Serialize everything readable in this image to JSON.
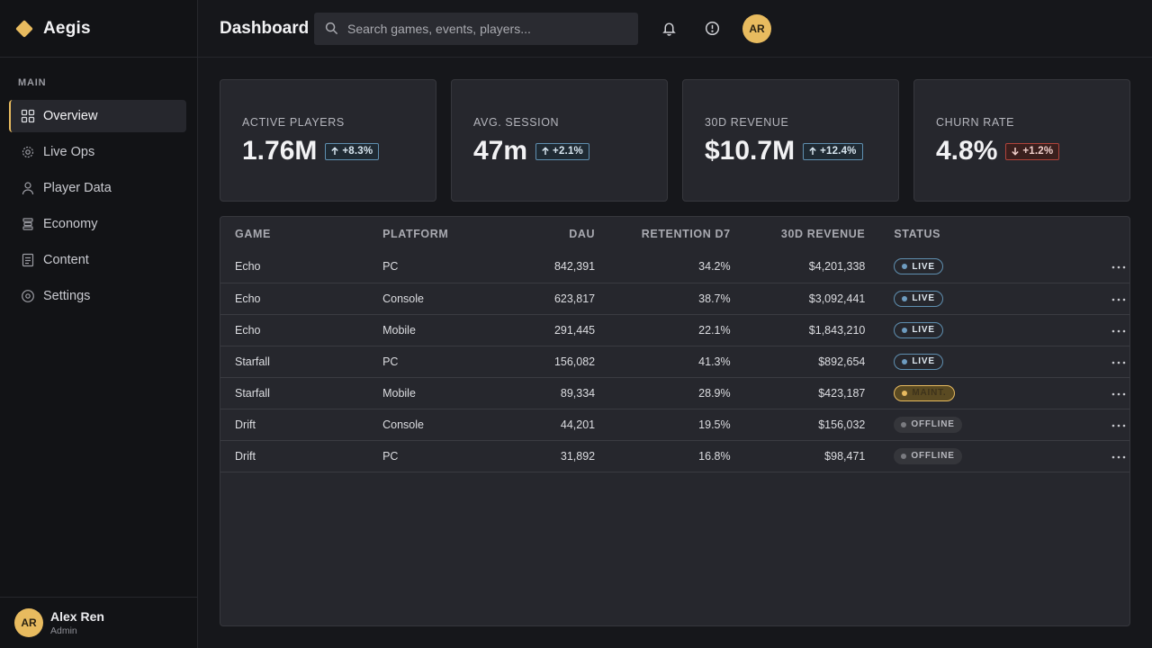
{
  "brand": {
    "name": "Aegis",
    "accent": "#e8bb5f"
  },
  "sidebar": {
    "section": "MAIN",
    "items": [
      {
        "label": "Overview",
        "icon": "grid-icon",
        "active": true
      },
      {
        "label": "Live Ops",
        "icon": "gear-target-icon",
        "active": false
      },
      {
        "label": "Player Data",
        "icon": "user-icon",
        "active": false
      },
      {
        "label": "Economy",
        "icon": "coins-icon",
        "active": false
      },
      {
        "label": "Content",
        "icon": "document-icon",
        "active": false
      },
      {
        "label": "Settings",
        "icon": "settings-icon",
        "active": false
      }
    ],
    "user": {
      "initials": "AR",
      "name": "Alex Ren",
      "role": "Admin"
    }
  },
  "header": {
    "title": "Dashboard",
    "search_placeholder": "Search games, events, players...",
    "avatar_initials": "AR"
  },
  "kpis": [
    {
      "label": "ACTIVE PLAYERS",
      "value": "1.76M",
      "delta": "+8.3%",
      "direction": "up"
    },
    {
      "label": "AVG. SESSION",
      "value": "47m",
      "delta": "+2.1%",
      "direction": "up"
    },
    {
      "label": "30D REVENUE",
      "value": "$10.7M",
      "delta": "+12.4%",
      "direction": "up"
    },
    {
      "label": "CHURN RATE",
      "value": "4.8%",
      "delta": "+1.2%",
      "direction": "down"
    }
  ],
  "table": {
    "headers": [
      "GAME",
      "PLATFORM",
      "DAU",
      "RETENTION D7",
      "30D REVENUE",
      "STATUS"
    ],
    "rows": [
      {
        "game": "Echo",
        "platform": "PC",
        "dau": "842,391",
        "retention": "34.2%",
        "revenue": "$4,201,338",
        "status": "LIVE",
        "status_type": "live"
      },
      {
        "game": "Echo",
        "platform": "Console",
        "dau": "623,817",
        "retention": "38.7%",
        "revenue": "$3,092,441",
        "status": "LIVE",
        "status_type": "live"
      },
      {
        "game": "Echo",
        "platform": "Mobile",
        "dau": "291,445",
        "retention": "22.1%",
        "revenue": "$1,843,210",
        "status": "LIVE",
        "status_type": "live"
      },
      {
        "game": "Starfall",
        "platform": "PC",
        "dau": "156,082",
        "retention": "41.3%",
        "revenue": "$892,654",
        "status": "LIVE",
        "status_type": "live"
      },
      {
        "game": "Starfall",
        "platform": "Mobile",
        "dau": "89,334",
        "retention": "28.9%",
        "revenue": "$423,187",
        "status": "MAINT.",
        "status_type": "maint"
      },
      {
        "game": "Drift",
        "platform": "Console",
        "dau": "44,201",
        "retention": "19.5%",
        "revenue": "$156,032",
        "status": "OFFLINE",
        "status_type": "offline"
      },
      {
        "game": "Drift",
        "platform": "PC",
        "dau": "31,892",
        "retention": "16.8%",
        "revenue": "$98,471",
        "status": "OFFLINE",
        "status_type": "offline"
      }
    ]
  }
}
